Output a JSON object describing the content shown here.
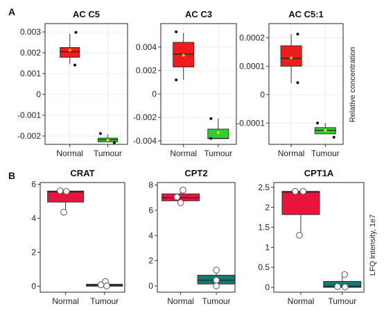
{
  "panels": [
    {
      "label": "A"
    },
    {
      "label": "B"
    }
  ],
  "row_ylabels": [
    "Relative concentration",
    "LFQ intensity, 1e7"
  ],
  "chart_data": [
    {
      "type": "box",
      "panel": "A",
      "title": "AC C5",
      "categories": [
        "Normal",
        "Tumour"
      ],
      "colors": [
        "#ee1c1c",
        "#2ed12e"
      ],
      "ylim": [
        -0.0024,
        0.0034
      ],
      "yticks": [
        -0.002,
        -0.001,
        0,
        0.001,
        0.002,
        0.003
      ],
      "yticklabels": [
        "-0.002",
        "-0.001",
        "0",
        "0.001",
        "0.002",
        "0.003"
      ],
      "boxes": [
        {
          "q1": 0.00178,
          "median": 0.00205,
          "q3": 0.00225,
          "whisker_low": 0.00145,
          "whisker_high": 0.0029,
          "mean": 0.00212,
          "points": [
            {
              "x": 0.25,
              "y": 0.00298
            },
            {
              "x": 0.21,
              "y": 0.00141
            }
          ]
        },
        {
          "q1": -0.00228,
          "median": -0.00218,
          "q3": -0.0021,
          "whisker_low": -0.00228,
          "whisker_high": -0.00193,
          "mean": -0.0022,
          "points": [
            {
              "x": -0.3,
              "y": -0.00188
            },
            {
              "x": 0.27,
              "y": -0.00232
            }
          ]
        }
      ]
    },
    {
      "type": "box",
      "panel": "A",
      "title": "AC C3",
      "categories": [
        "Normal",
        "Tumour"
      ],
      "colors": [
        "#ee1c1c",
        "#2ed12e"
      ],
      "ylim": [
        -0.0043,
        0.006
      ],
      "yticks": [
        -0.004,
        -0.002,
        0,
        0.002,
        0.004
      ],
      "yticklabels": [
        "-0.004",
        "-0.002",
        "0",
        "0.002",
        "0.004"
      ],
      "boxes": [
        {
          "q1": 0.0023,
          "median": 0.0034,
          "q3": 0.0044,
          "whisker_low": 0.0012,
          "whisker_high": 0.0052,
          "mean": 0.0033,
          "points": [
            {
              "x": -0.28,
              "y": 0.0053
            },
            {
              "x": -0.28,
              "y": 0.0012
            }
          ]
        },
        {
          "q1": -0.0038,
          "median": -0.0038,
          "q3": -0.003,
          "whisker_low": -0.0038,
          "whisker_high": -0.0021,
          "mean": -0.0033,
          "points": [
            {
              "x": -0.28,
              "y": -0.0021
            },
            {
              "x": -0.28,
              "y": -0.0038
            }
          ]
        }
      ]
    },
    {
      "type": "box",
      "panel": "A",
      "title": "AC C5:1",
      "categories": [
        "Normal",
        "Tumour"
      ],
      "colors": [
        "#ee1c1c",
        "#2ed12e"
      ],
      "ylim": [
        -0.000175,
        0.00025
      ],
      "yticks": [
        -0.0001,
        0,
        0.0001,
        0.0002
      ],
      "yticklabels": [
        "-0.0001",
        "0",
        "0.0001",
        "0.0002"
      ],
      "boxes": [
        {
          "q1": 0.0001,
          "median": 0.000128,
          "q3": 0.000172,
          "whisker_low": 4e-05,
          "whisker_high": 0.000213,
          "mean": 0.00013,
          "points": [
            {
              "x": 0.25,
              "y": 0.000213
            },
            {
              "x": 0.25,
              "y": 4.2e-05
            }
          ]
        },
        {
          "q1": -0.000138,
          "median": -0.000126,
          "q3": -0.000116,
          "whisker_low": -0.000138,
          "whisker_high": -0.0001,
          "mean": -0.000126,
          "points": [
            {
              "x": -0.3,
              "y": -0.0001
            },
            {
              "x": 0.33,
              "y": -0.00015
            }
          ]
        }
      ]
    },
    {
      "type": "box",
      "panel": "B",
      "title": "CRAT",
      "categories": [
        "Normal",
        "Tumour"
      ],
      "colors": [
        "#e8143c",
        "#157a72"
      ],
      "ylim": [
        -0.35,
        6.1
      ],
      "yticks": [
        0,
        2,
        4,
        6
      ],
      "yticklabels": [
        "0",
        "2",
        "4",
        "6"
      ],
      "boxes": [
        {
          "q1": 4.95,
          "median": 5.55,
          "q3": 5.6,
          "whisker_low": 4.35,
          "whisker_high": 5.62,
          "points": [
            {
              "x": -0.12,
              "y": 5.62
            },
            {
              "x": 0.02,
              "y": 5.58
            },
            {
              "x": -0.04,
              "y": 4.35
            }
          ]
        },
        {
          "q1": 0.0,
          "median": 0.06,
          "q3": 0.12,
          "whisker_low": 0.0,
          "whisker_high": 0.28,
          "points": [
            {
              "x": 0.02,
              "y": 0.28
            },
            {
              "x": -0.08,
              "y": 0.08
            },
            {
              "x": 0.05,
              "y": 0.02
            }
          ]
        }
      ]
    },
    {
      "type": "box",
      "panel": "B",
      "title": "CPT2",
      "categories": [
        "Normal",
        "Tumour"
      ],
      "colors": [
        "#e8143c",
        "#157a72"
      ],
      "ylim": [
        -0.5,
        8.2
      ],
      "yticks": [
        0,
        2,
        4,
        6,
        8
      ],
      "yticklabels": [
        "0",
        "2",
        "4",
        "6",
        "8"
      ],
      "boxes": [
        {
          "q1": 6.75,
          "median": 7.0,
          "q3": 7.3,
          "whisker_low": 6.6,
          "whisker_high": 7.6,
          "points": [
            {
              "x": 0.05,
              "y": 7.6
            },
            {
              "x": -0.08,
              "y": 7.05
            },
            {
              "x": 0.0,
              "y": 6.6
            }
          ]
        },
        {
          "q1": 0.15,
          "median": 0.45,
          "q3": 0.85,
          "whisker_low": 0.0,
          "whisker_high": 1.25,
          "points": [
            {
              "x": 0.0,
              "y": 1.25
            },
            {
              "x": 0.0,
              "y": 0.45
            },
            {
              "x": 0.0,
              "y": 0.0
            }
          ]
        }
      ]
    },
    {
      "type": "box",
      "panel": "B",
      "title": "CPT1A",
      "categories": [
        "Normal",
        "Tumour"
      ],
      "colors": [
        "#e8143c",
        "#157a72"
      ],
      "ylim": [
        -0.12,
        2.62
      ],
      "yticks": [
        0,
        0.5,
        1,
        1.5,
        2,
        2.5
      ],
      "yticklabels": [
        "0",
        "0.5",
        "1",
        "1.5",
        "2",
        "2.5"
      ],
      "boxes": [
        {
          "q1": 1.82,
          "median": 2.38,
          "q3": 2.4,
          "whisker_low": 1.3,
          "whisker_high": 2.42,
          "points": [
            {
              "x": -0.12,
              "y": 2.4
            },
            {
              "x": 0.05,
              "y": 2.4
            },
            {
              "x": -0.03,
              "y": 1.3
            }
          ]
        },
        {
          "q1": 0.0,
          "median": 0.03,
          "q3": 0.15,
          "whisker_low": 0.0,
          "whisker_high": 0.32,
          "points": [
            {
              "x": 0.05,
              "y": 0.32
            },
            {
              "x": -0.1,
              "y": 0.02
            },
            {
              "x": 0.06,
              "y": 0.01
            }
          ]
        }
      ]
    }
  ]
}
